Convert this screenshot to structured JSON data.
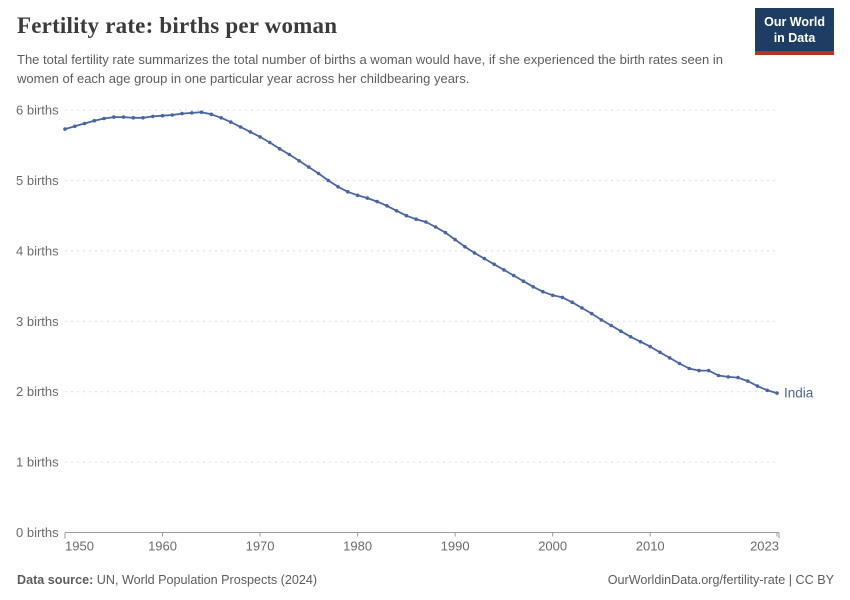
{
  "header": {
    "title": "Fertility rate: births per woman",
    "logo": {
      "line1": "Our World",
      "line2": "in Data",
      "bg_color": "#1d3d63",
      "bar_color": "#b5312c"
    }
  },
  "subtitle": "The total fertility rate summarizes the total number of births a woman would have, if she experienced the birth rates seen in women of each age group in one particular year across her childbearing years.",
  "chart_data": {
    "type": "line",
    "title": "Fertility rate: births per woman",
    "xlabel": "",
    "ylabel": "births per woman",
    "ylim": [
      0,
      6
    ],
    "xlim": [
      1950,
      2023
    ],
    "grid": "horizontal-dashed",
    "legend_position": "end-of-line-label",
    "x": [
      1950,
      1951,
      1952,
      1953,
      1954,
      1955,
      1956,
      1957,
      1958,
      1959,
      1960,
      1961,
      1962,
      1963,
      1964,
      1965,
      1966,
      1967,
      1968,
      1969,
      1970,
      1971,
      1972,
      1973,
      1974,
      1975,
      1976,
      1977,
      1978,
      1979,
      1980,
      1981,
      1982,
      1983,
      1984,
      1985,
      1986,
      1987,
      1988,
      1989,
      1990,
      1991,
      1992,
      1993,
      1994,
      1995,
      1996,
      1997,
      1998,
      1999,
      2000,
      2001,
      2002,
      2003,
      2004,
      2005,
      2006,
      2007,
      2008,
      2009,
      2010,
      2011,
      2012,
      2013,
      2014,
      2015,
      2016,
      2017,
      2018,
      2019,
      2020,
      2021,
      2022,
      2023
    ],
    "series": [
      {
        "name": "India",
        "color": "#4a65a3",
        "values": [
          5.73,
          5.77,
          5.81,
          5.85,
          5.88,
          5.9,
          5.9,
          5.89,
          5.89,
          5.91,
          5.92,
          5.93,
          5.95,
          5.96,
          5.97,
          5.94,
          5.89,
          5.83,
          5.76,
          5.69,
          5.62,
          5.54,
          5.45,
          5.37,
          5.28,
          5.19,
          5.1,
          5.0,
          4.91,
          4.84,
          4.79,
          4.75,
          4.7,
          4.64,
          4.57,
          4.5,
          4.45,
          4.41,
          4.34,
          4.26,
          4.16,
          4.06,
          3.97,
          3.89,
          3.81,
          3.73,
          3.65,
          3.57,
          3.49,
          3.42,
          3.37,
          3.34,
          3.27,
          3.19,
          3.11,
          3.02,
          2.94,
          2.86,
          2.78,
          2.71,
          2.64,
          2.56,
          2.48,
          2.4,
          2.33,
          2.3,
          2.3,
          2.23,
          2.21,
          2.2,
          2.15,
          2.08,
          2.02,
          1.98
        ]
      }
    ],
    "yticks": [
      {
        "value": 0,
        "label": "0 births"
      },
      {
        "value": 1,
        "label": "1 births"
      },
      {
        "value": 2,
        "label": "2 births"
      },
      {
        "value": 3,
        "label": "3 births"
      },
      {
        "value": 4,
        "label": "4 births"
      },
      {
        "value": 5,
        "label": "5 births"
      },
      {
        "value": 6,
        "label": "6 births"
      }
    ],
    "xticks": [
      {
        "value": 1950,
        "label": "1950"
      },
      {
        "value": 1960,
        "label": "1960"
      },
      {
        "value": 1970,
        "label": "1970"
      },
      {
        "value": 1980,
        "label": "1980"
      },
      {
        "value": 1990,
        "label": "1990"
      },
      {
        "value": 2000,
        "label": "2000"
      },
      {
        "value": 2010,
        "label": "2010"
      },
      {
        "value": 2023,
        "label": "2023"
      }
    ]
  },
  "footer": {
    "source_label": "Data source:",
    "source_text": " UN, World Population Prospects (2024)",
    "right_text": "OurWorldinData.org/fertility-rate | CC BY"
  },
  "colors": {
    "line": "#4a65a3",
    "grid": "#dadada",
    "axis": "#9e9e9e",
    "tick_text": "#6b6b6b",
    "title_text": "#3b3b3b",
    "subtitle_text": "#5d5d5d",
    "footer_text": "#5d5d5d",
    "logo_bg": "#1d3d63",
    "logo_bar": "#b5312c"
  }
}
